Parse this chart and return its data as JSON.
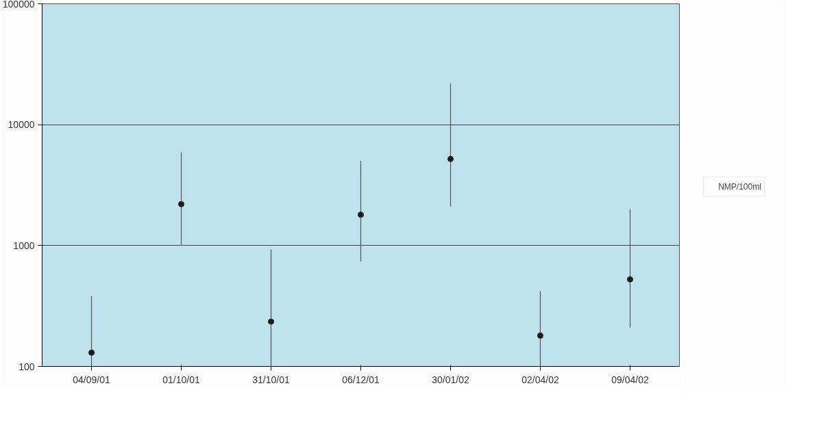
{
  "chart_data": {
    "type": "scatter",
    "categories": [
      "04/09/01",
      "01/10/01",
      "31/10/01",
      "06/12/01",
      "30/01/02",
      "02/04/02",
      "09/04/02"
    ],
    "series": [
      {
        "name": "NMP/100ml",
        "color": "#1a1a1a",
        "values": [
          130,
          2200,
          235,
          1800,
          5200,
          180,
          525
        ],
        "errors": [
          [
            100,
            380
          ],
          [
            1000,
            5900
          ],
          [
            100,
            930
          ],
          [
            740,
            5000
          ],
          [
            2100,
            22000
          ],
          [
            100,
            420
          ],
          [
            210,
            2000
          ]
        ]
      }
    ],
    "log": true,
    "ylim": [
      100,
      100000
    ],
    "yticks": [
      100,
      1000,
      10000,
      100000
    ],
    "grid": "y",
    "legend": "right",
    "marker": "circle"
  }
}
